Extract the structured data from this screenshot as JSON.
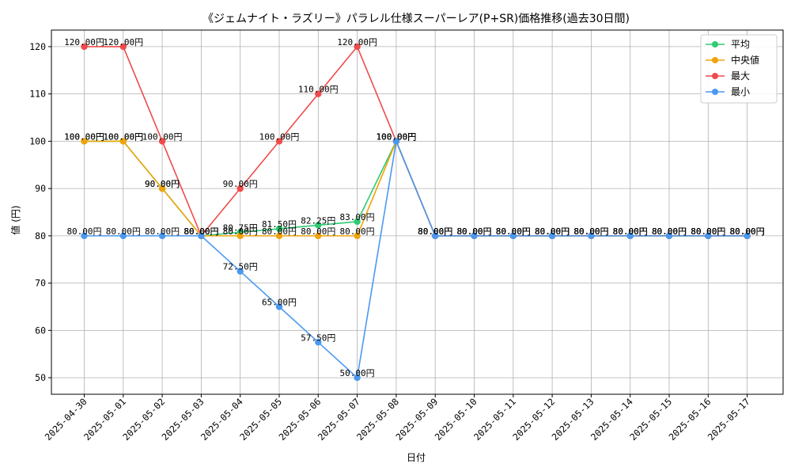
{
  "chart_data": {
    "type": "line",
    "title": "《ジェムナイト・ラズリー》パラレル仕様スーパーレア(P+SR)価格推移(過去30日間)",
    "xlabel": "日付",
    "ylabel": "値 (円)",
    "ylim": [
      46.5,
      123.5
    ],
    "yticks": [
      50,
      60,
      70,
      80,
      90,
      100,
      110,
      120
    ],
    "grid": true,
    "legend_position": "top-right",
    "value_suffix": "円",
    "categories": [
      "2025-04-30",
      "2025-05-01",
      "2025-05-02",
      "2025-05-03",
      "2025-05-04",
      "2025-05-05",
      "2025-05-06",
      "2025-05-07",
      "2025-05-08",
      "2025-05-09",
      "2025-05-10",
      "2025-05-11",
      "2025-05-12",
      "2025-05-13",
      "2025-05-14",
      "2025-05-15",
      "2025-05-16",
      "2025-05-17"
    ],
    "series": [
      {
        "name": "平均",
        "color": "#2ecc71",
        "values": [
          100,
          100,
          90,
          80,
          80.75,
          81.5,
          82.25,
          83,
          100,
          80,
          80,
          80,
          80,
          80,
          80,
          80,
          80,
          80
        ]
      },
      {
        "name": "中央値",
        "color": "#f0a30a",
        "values": [
          100,
          100,
          90,
          80,
          80,
          80,
          80,
          80,
          100,
          80,
          80,
          80,
          80,
          80,
          80,
          80,
          80,
          80
        ]
      },
      {
        "name": "最大",
        "color": "#ef4b4b",
        "values": [
          120,
          120,
          100,
          80,
          90,
          100,
          110,
          120,
          100,
          80,
          80,
          80,
          80,
          80,
          80,
          80,
          80,
          80
        ]
      },
      {
        "name": "最小",
        "color": "#4a98f0",
        "values": [
          80,
          80,
          80,
          80,
          72.5,
          65,
          57.5,
          50,
          100,
          80,
          80,
          80,
          80,
          80,
          80,
          80,
          80,
          80
        ]
      }
    ]
  }
}
